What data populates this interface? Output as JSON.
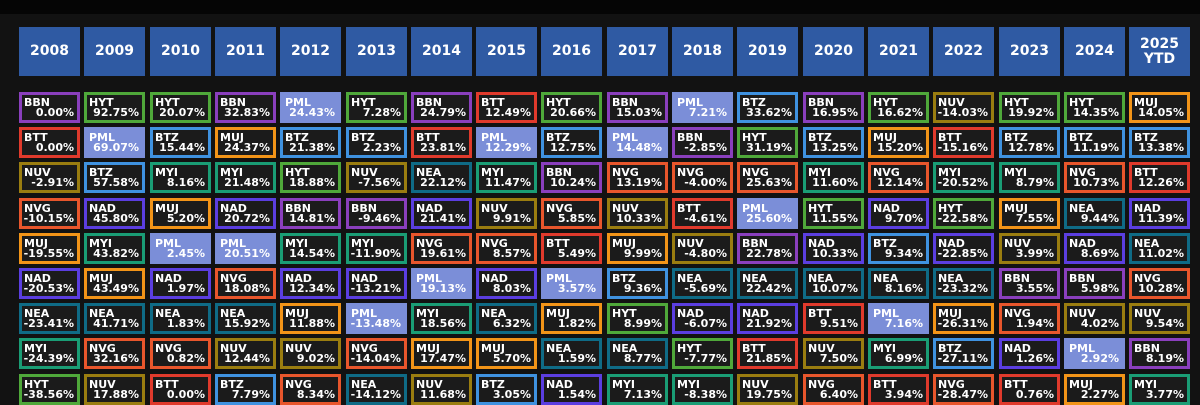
{
  "chart_data": {
    "type": "table",
    "title": "",
    "columns": [
      "2008",
      "2009",
      "2010",
      "2011",
      "2012",
      "2013",
      "2014",
      "2015",
      "2016",
      "2017",
      "2018",
      "2019",
      "2020",
      "2021",
      "2022",
      "2023",
      "2024",
      "2025 YTD"
    ],
    "colors": {
      "BBN": "#8a3fbd",
      "HYT": "#4fa83a",
      "BTT": "#e03a2c",
      "PML": "#7b8ed8",
      "BTZ": "#3f92e0",
      "MUJ": "#f29418",
      "NUV": "#9a7d10",
      "NVG": "#e8562c",
      "MYI": "#1a9d75",
      "NAD": "#5b3ee0",
      "NEA": "#0f6b86"
    },
    "rows": [
      [
        {
          "t": "BBN",
          "v": "0.00%"
        },
        {
          "t": "HYT",
          "v": "92.75%"
        },
        {
          "t": "HYT",
          "v": "20.07%"
        },
        {
          "t": "BBN",
          "v": "32.83%"
        },
        {
          "t": "PML",
          "v": "24.43%"
        },
        {
          "t": "HYT",
          "v": "7.28%"
        },
        {
          "t": "BBN",
          "v": "24.79%"
        },
        {
          "t": "BTT",
          "v": "12.49%"
        },
        {
          "t": "HYT",
          "v": "20.66%"
        },
        {
          "t": "BBN",
          "v": "15.03%"
        },
        {
          "t": "PML",
          "v": "7.21%"
        },
        {
          "t": "BTZ",
          "v": "33.62%"
        },
        {
          "t": "BBN",
          "v": "16.95%"
        },
        {
          "t": "HYT",
          "v": "16.62%"
        },
        {
          "t": "NUV",
          "v": "-14.03%"
        },
        {
          "t": "HYT",
          "v": "19.92%"
        },
        {
          "t": "HYT",
          "v": "14.35%"
        },
        {
          "t": "MUJ",
          "v": "14.05%"
        }
      ],
      [
        {
          "t": "BTT",
          "v": "0.00%"
        },
        {
          "t": "PML",
          "v": "69.07%"
        },
        {
          "t": "BTZ",
          "v": "15.44%"
        },
        {
          "t": "MUJ",
          "v": "24.37%"
        },
        {
          "t": "BTZ",
          "v": "21.38%"
        },
        {
          "t": "BTZ",
          "v": "2.23%"
        },
        {
          "t": "BTT",
          "v": "23.81%"
        },
        {
          "t": "PML",
          "v": "12.29%"
        },
        {
          "t": "BTZ",
          "v": "12.75%"
        },
        {
          "t": "PML",
          "v": "14.48%"
        },
        {
          "t": "BBN",
          "v": "-2.85%"
        },
        {
          "t": "HYT",
          "v": "31.19%"
        },
        {
          "t": "BTZ",
          "v": "13.25%"
        },
        {
          "t": "MUJ",
          "v": "15.20%"
        },
        {
          "t": "BTT",
          "v": "-15.16%"
        },
        {
          "t": "BTZ",
          "v": "12.78%"
        },
        {
          "t": "BTZ",
          "v": "11.19%"
        },
        {
          "t": "BTZ",
          "v": "13.38%"
        }
      ],
      [
        {
          "t": "NUV",
          "v": "-2.91%"
        },
        {
          "t": "BTZ",
          "v": "57.58%"
        },
        {
          "t": "MYI",
          "v": "8.16%"
        },
        {
          "t": "MYI",
          "v": "21.48%"
        },
        {
          "t": "HYT",
          "v": "18.88%"
        },
        {
          "t": "NUV",
          "v": "-7.56%"
        },
        {
          "t": "NEA",
          "v": "22.12%"
        },
        {
          "t": "MYI",
          "v": "11.47%"
        },
        {
          "t": "BBN",
          "v": "10.24%"
        },
        {
          "t": "NVG",
          "v": "13.19%"
        },
        {
          "t": "NVG",
          "v": "-4.00%"
        },
        {
          "t": "NVG",
          "v": "25.63%"
        },
        {
          "t": "MYI",
          "v": "11.60%"
        },
        {
          "t": "NVG",
          "v": "12.14%"
        },
        {
          "t": "MYI",
          "v": "-20.52%"
        },
        {
          "t": "MYI",
          "v": "8.79%"
        },
        {
          "t": "NVG",
          "v": "10.73%"
        },
        {
          "t": "BTT",
          "v": "12.26%"
        }
      ],
      [
        {
          "t": "NVG",
          "v": "-10.15%"
        },
        {
          "t": "NAD",
          "v": "45.80%"
        },
        {
          "t": "MUJ",
          "v": "5.20%"
        },
        {
          "t": "NAD",
          "v": "20.72%"
        },
        {
          "t": "BBN",
          "v": "14.81%"
        },
        {
          "t": "BBN",
          "v": "-9.46%"
        },
        {
          "t": "NAD",
          "v": "21.41%"
        },
        {
          "t": "NUV",
          "v": "9.91%"
        },
        {
          "t": "NVG",
          "v": "5.85%"
        },
        {
          "t": "NUV",
          "v": "10.33%"
        },
        {
          "t": "BTT",
          "v": "-4.61%"
        },
        {
          "t": "PML",
          "v": "25.60%"
        },
        {
          "t": "HYT",
          "v": "11.55%"
        },
        {
          "t": "NAD",
          "v": "9.70%"
        },
        {
          "t": "HYT",
          "v": "-22.58%"
        },
        {
          "t": "MUJ",
          "v": "7.55%"
        },
        {
          "t": "NEA",
          "v": "9.44%"
        },
        {
          "t": "NAD",
          "v": "11.39%"
        }
      ],
      [
        {
          "t": "MUJ",
          "v": "-19.55%"
        },
        {
          "t": "MYI",
          "v": "43.82%"
        },
        {
          "t": "PML",
          "v": "2.45%"
        },
        {
          "t": "PML",
          "v": "20.51%"
        },
        {
          "t": "MYI",
          "v": "14.54%"
        },
        {
          "t": "MYI",
          "v": "-11.90%"
        },
        {
          "t": "NVG",
          "v": "19.61%"
        },
        {
          "t": "NVG",
          "v": "8.57%"
        },
        {
          "t": "BTT",
          "v": "5.49%"
        },
        {
          "t": "MUJ",
          "v": "9.99%"
        },
        {
          "t": "NUV",
          "v": "-4.80%"
        },
        {
          "t": "BBN",
          "v": "22.78%"
        },
        {
          "t": "NAD",
          "v": "10.33%"
        },
        {
          "t": "BTZ",
          "v": "9.34%"
        },
        {
          "t": "NAD",
          "v": "-22.85%"
        },
        {
          "t": "NUV",
          "v": "3.99%"
        },
        {
          "t": "NAD",
          "v": "8.69%"
        },
        {
          "t": "NEA",
          "v": "11.02%"
        }
      ],
      [
        {
          "t": "NAD",
          "v": "-20.53%"
        },
        {
          "t": "MUJ",
          "v": "43.49%"
        },
        {
          "t": "NAD",
          "v": "1.97%"
        },
        {
          "t": "NVG",
          "v": "18.08%"
        },
        {
          "t": "NAD",
          "v": "12.34%"
        },
        {
          "t": "NAD",
          "v": "-13.21%"
        },
        {
          "t": "PML",
          "v": "19.13%"
        },
        {
          "t": "NAD",
          "v": "8.03%"
        },
        {
          "t": "PML",
          "v": "3.57%"
        },
        {
          "t": "BTZ",
          "v": "9.36%"
        },
        {
          "t": "NEA",
          "v": "-5.69%"
        },
        {
          "t": "NEA",
          "v": "22.42%"
        },
        {
          "t": "NEA",
          "v": "10.07%"
        },
        {
          "t": "NEA",
          "v": "8.16%"
        },
        {
          "t": "NEA",
          "v": "-23.32%"
        },
        {
          "t": "BBN",
          "v": "3.55%"
        },
        {
          "t": "BBN",
          "v": "5.98%"
        },
        {
          "t": "NVG",
          "v": "10.28%"
        }
      ],
      [
        {
          "t": "NEA",
          "v": "-23.41%"
        },
        {
          "t": "NEA",
          "v": "41.71%"
        },
        {
          "t": "NEA",
          "v": "1.83%"
        },
        {
          "t": "NEA",
          "v": "15.92%"
        },
        {
          "t": "MUJ",
          "v": "11.88%"
        },
        {
          "t": "PML",
          "v": "-13.48%"
        },
        {
          "t": "MYI",
          "v": "18.56%"
        },
        {
          "t": "NEA",
          "v": "6.32%"
        },
        {
          "t": "MUJ",
          "v": "1.82%"
        },
        {
          "t": "HYT",
          "v": "8.99%"
        },
        {
          "t": "NAD",
          "v": "-6.07%"
        },
        {
          "t": "NAD",
          "v": "21.92%"
        },
        {
          "t": "BTT",
          "v": "9.51%"
        },
        {
          "t": "PML",
          "v": "7.16%"
        },
        {
          "t": "MUJ",
          "v": "-26.31%"
        },
        {
          "t": "NVG",
          "v": "1.94%"
        },
        {
          "t": "NUV",
          "v": "4.02%"
        },
        {
          "t": "NUV",
          "v": "9.54%"
        }
      ],
      [
        {
          "t": "MYI",
          "v": "-24.39%"
        },
        {
          "t": "NVG",
          "v": "32.16%"
        },
        {
          "t": "NVG",
          "v": "0.82%"
        },
        {
          "t": "NUV",
          "v": "12.44%"
        },
        {
          "t": "NUV",
          "v": "9.02%"
        },
        {
          "t": "NVG",
          "v": "-14.04%"
        },
        {
          "t": "MUJ",
          "v": "17.47%"
        },
        {
          "t": "MUJ",
          "v": "5.70%"
        },
        {
          "t": "NEA",
          "v": "1.59%"
        },
        {
          "t": "NEA",
          "v": "8.77%"
        },
        {
          "t": "HYT",
          "v": "-7.77%"
        },
        {
          "t": "BTT",
          "v": "21.85%"
        },
        {
          "t": "NUV",
          "v": "7.50%"
        },
        {
          "t": "MYI",
          "v": "6.99%"
        },
        {
          "t": "BTZ",
          "v": "-27.11%"
        },
        {
          "t": "NAD",
          "v": "1.26%"
        },
        {
          "t": "PML",
          "v": "2.92%"
        },
        {
          "t": "BBN",
          "v": "8.19%"
        }
      ],
      [
        {
          "t": "HYT",
          "v": "-38.56%"
        },
        {
          "t": "NUV",
          "v": "17.88%"
        },
        {
          "t": "BTT",
          "v": "0.00%"
        },
        {
          "t": "BTZ",
          "v": "7.79%"
        },
        {
          "t": "NVG",
          "v": "8.34%"
        },
        {
          "t": "NEA",
          "v": "-14.12%"
        },
        {
          "t": "NUV",
          "v": "11.68%"
        },
        {
          "t": "BTZ",
          "v": "3.05%"
        },
        {
          "t": "NAD",
          "v": "1.54%"
        },
        {
          "t": "MYI",
          "v": "7.13%"
        },
        {
          "t": "MYI",
          "v": "-8.38%"
        },
        {
          "t": "NUV",
          "v": "19.75%"
        },
        {
          "t": "NVG",
          "v": "6.40%"
        },
        {
          "t": "BTT",
          "v": "3.94%"
        },
        {
          "t": "NVG",
          "v": "-28.47%"
        },
        {
          "t": "BTT",
          "v": "0.76%"
        },
        {
          "t": "MUJ",
          "v": "2.27%"
        },
        {
          "t": "MYI",
          "v": "3.77%"
        }
      ]
    ]
  }
}
